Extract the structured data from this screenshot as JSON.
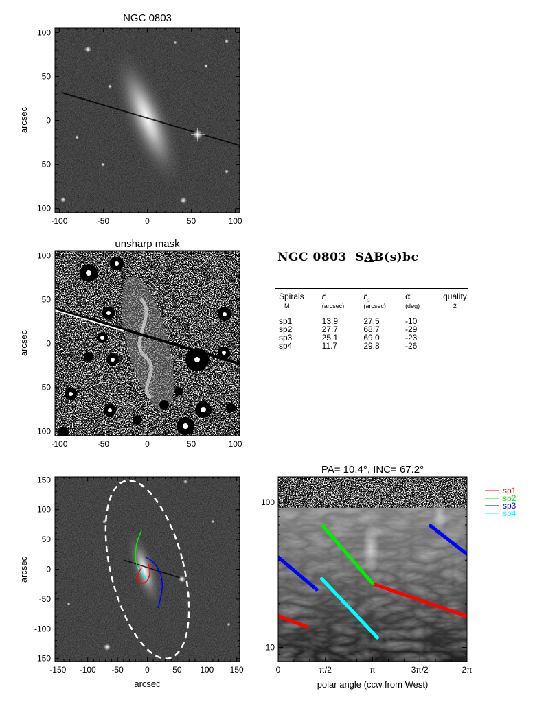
{
  "figure": {
    "galaxy_name": "NGC 0803",
    "morph_prefix": "S",
    "morph_underlined": "A",
    "morph_suffix": "B(s)bc",
    "axis_label_arcsec": "arcsec",
    "colors": {
      "sp1": "#ff0000",
      "sp2": "#00ee00",
      "sp3": "#0000ff",
      "sp4": "#00ffff",
      "ellipse": "#ffffff"
    }
  },
  "table": {
    "headers": [
      "Spirals",
      "r",
      "r",
      "α",
      "quality"
    ],
    "header_subscripts": [
      "",
      "i",
      "o",
      "",
      ""
    ],
    "subheaders": [
      "M",
      "(arcsec)",
      "(arcsec)",
      "(deg)",
      "2"
    ],
    "rows": [
      [
        "sp1",
        "13.9",
        "27.5",
        "-10",
        ""
      ],
      [
        "sp2",
        "27.7",
        "68.7",
        "-29",
        ""
      ],
      [
        "sp3",
        "25.1",
        "69.0",
        "-23",
        ""
      ],
      [
        "sp4",
        "11.7",
        "29.8",
        "-26",
        ""
      ]
    ]
  },
  "chart_data": [
    {
      "type": "image",
      "title": "NGC 0803",
      "xlabel": "",
      "ylabel": "arcsec",
      "xlim": [
        -105,
        105
      ],
      "ylim": [
        -105,
        105
      ],
      "xticks": [
        "-100",
        "-50",
        "0",
        "50",
        "100"
      ],
      "yticks": [
        "100",
        "50",
        "0",
        "-50",
        "-100"
      ]
    },
    {
      "type": "image",
      "title": "unsharp mask",
      "xlabel": "",
      "ylabel": "arcsec",
      "xlim": [
        -105,
        105
      ],
      "ylim": [
        -105,
        105
      ],
      "xticks": [
        "-100",
        "-50",
        "0",
        "50",
        "100"
      ],
      "yticks": [
        "100",
        "50",
        "0",
        "-50",
        "-100"
      ]
    },
    {
      "type": "image",
      "title": "",
      "xlabel": "arcsec",
      "ylabel": "arcsec",
      "xlim": [
        -155,
        155
      ],
      "ylim": [
        -155,
        155
      ],
      "xticks": [
        "-150",
        "-100",
        "-50",
        "0",
        "50",
        "100",
        "150"
      ],
      "yticks": [
        "150",
        "100",
        "50",
        "0",
        "-50",
        "-100",
        "-150"
      ],
      "ellipse": {
        "center": [
          0,
          0
        ],
        "pa_deg": 10.4,
        "inc_deg": 67.2
      }
    },
    {
      "type": "line",
      "title": "PA= 10.4°, INC= 67.2°",
      "xlabel": "polar angle (ccw from West)",
      "ylabel": "",
      "xlim": [
        0,
        6.2832
      ],
      "ylim": [
        8,
        150
      ],
      "y_scale": "log",
      "xticks": [
        "0",
        "π/2",
        "π",
        "3π/2",
        "2π"
      ],
      "yticks": [
        "100",
        "10"
      ],
      "legend_position": "right",
      "series": [
        {
          "name": "sp1",
          "segments": [
            [
              [
                0,
                16.5
              ],
              [
                0.95,
                13.9
              ]
            ],
            [
              [
                3.14,
                27.5
              ],
              [
                6.28,
                16.4
              ]
            ]
          ]
        },
        {
          "name": "sp2",
          "segments": [
            [
              [
                1.49,
                68.7
              ],
              [
                3.14,
                27.7
              ]
            ]
          ]
        },
        {
          "name": "sp3",
          "segments": [
            [
              [
                0,
                42.0
              ],
              [
                1.28,
                25.1
              ]
            ],
            [
              [
                5.07,
                69.0
              ],
              [
                6.28,
                44.0
              ]
            ]
          ]
        },
        {
          "name": "sp4",
          "segments": [
            [
              [
                1.45,
                29.8
              ],
              [
                3.3,
                11.7
              ]
            ]
          ]
        }
      ]
    }
  ]
}
